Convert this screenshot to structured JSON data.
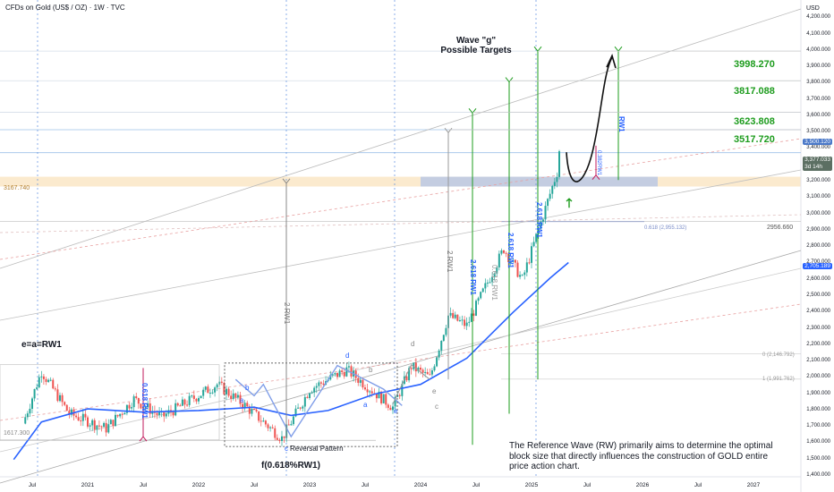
{
  "header": {
    "title": "CFDs on Gold (US$ / OZ) · 1W · TVC"
  },
  "currency": "USD",
  "chart_data": {
    "type": "candlestick",
    "title": "CFDs on Gold (US$ / OZ) · 1W · TVC",
    "ylim": [
      1400,
      4300
    ],
    "price_labels": [
      "4,200.000",
      "4,100.000",
      "4,000.000",
      "3,900.000",
      "3,800.000",
      "3,700.000",
      "3,600.000",
      "3,500.000",
      "3,400.000",
      "3,300.000",
      "3,200.000",
      "3,100.000",
      "3,000.000",
      "2,900.000",
      "2,800.000",
      "2,700.000",
      "2,600.000",
      "2,500.000",
      "2,400.000",
      "2,300.000",
      "2,200.000",
      "2,100.000",
      "2,000.000",
      "1,900.000",
      "1,800.000",
      "1,700.000",
      "1,600.000",
      "1,500.000",
      "1,400.000"
    ],
    "time_labels": [
      "Jul",
      "2021",
      "Jul",
      "2022",
      "Jul",
      "2023",
      "Jul",
      "2024",
      "Jul",
      "2025",
      "Jul",
      "2026",
      "Jul",
      "2027"
    ],
    "close_path": [
      {
        "t": "2020-06",
        "p": 1720
      },
      {
        "t": "2020-08",
        "p": 2040
      },
      {
        "t": "2020-11",
        "p": 1780
      },
      {
        "t": "2021-03",
        "p": 1690
      },
      {
        "t": "2021-06",
        "p": 1870
      },
      {
        "t": "2021-09",
        "p": 1760
      },
      {
        "t": "2022-03",
        "p": 1960
      },
      {
        "t": "2022-06",
        "p": 1830
      },
      {
        "t": "2022-10",
        "p": 1630
      },
      {
        "t": "2023-01",
        "p": 1930
      },
      {
        "t": "2023-05",
        "p": 2050
      },
      {
        "t": "2023-10",
        "p": 1820
      },
      {
        "t": "2023-12",
        "p": 2070
      },
      {
        "t": "2024-02",
        "p": 2000
      },
      {
        "t": "2024-04",
        "p": 2380
      },
      {
        "t": "2024-06",
        "p": 2320
      },
      {
        "t": "2024-10",
        "p": 2790
      },
      {
        "t": "2024-12",
        "p": 2600
      },
      {
        "t": "2025-02",
        "p": 2950
      },
      {
        "t": "2025-04",
        "p": 3300
      },
      {
        "t": "2025-04",
        "p": 3377
      }
    ],
    "levels": [
      {
        "label": "3998.270",
        "value": 3998.27
      },
      {
        "label": "3817.088",
        "value": 3817.088
      },
      {
        "label": "3623.808",
        "value": 3623.808
      },
      {
        "label": "3517.720",
        "value": 3517.72
      }
    ],
    "current_price": "3,377.033",
    "current_sub": "3d 14h",
    "tag_3500": "3,500.120",
    "tag_ma": "2,705.189",
    "left_level": "3167.740",
    "level_2956": "2956.660",
    "fib_0618": "0.618 (2,955.132)",
    "fib_0": "0 (2,146.792)",
    "fib_1": "1 (1,991.762)",
    "low_level": "1617.300",
    "annotations": {
      "wave_g_title": "Wave \"g\"",
      "wave_g_sub": "Possible Targets",
      "ea_rw1": "e=a=RW1",
      "f_label": "f(0.618%RW1)",
      "reversal": "Reversal Pattern",
      "rw1_left": "0.618 RW1",
      "rw1_mid": "2 RW1",
      "rw1_a": "2 RW1",
      "rw1_b": "2.618 RW1",
      "rw1_c": "2.618 RW1",
      "rw1_d": "2.618 RW1",
      "rw1_e": "0.618 RW1",
      "rw1_top": "RW1",
      "rw1_small": "0.382RW1",
      "wave_a": "a",
      "wave_b": "b",
      "wave_c": "c",
      "wave_d": "d",
      "wave_e": "e",
      "wave_a2": "a",
      "wave_b2": "b",
      "wave_c2": "c",
      "wave_d2": "d",
      "wave_e2": "e"
    },
    "note": "The Reference Wave (RW) primarily aims to determine the optimal block size that directly influences the construction of GOLD entire price action chart."
  }
}
